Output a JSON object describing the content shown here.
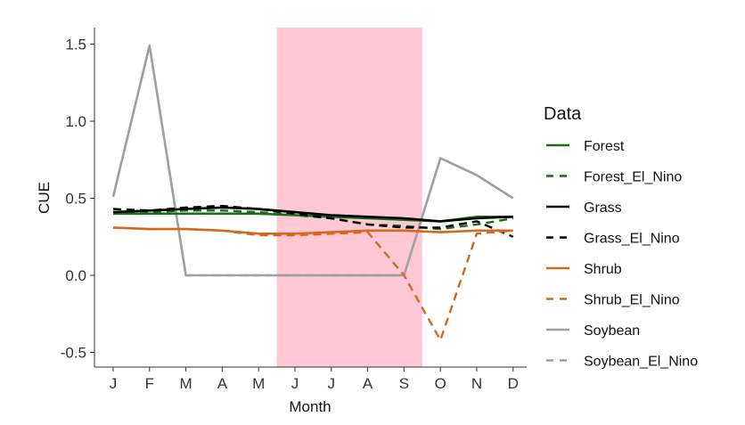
{
  "chart_data": {
    "type": "line",
    "title": "",
    "xlabel": "Month",
    "ylabel": "CUE",
    "categories": [
      "J",
      "F",
      "M",
      "A",
      "M",
      "J",
      "J",
      "A",
      "S",
      "O",
      "N",
      "D"
    ],
    "yticks": [
      "1.5",
      "1.0",
      "0.5",
      "0.0",
      "-0.5"
    ],
    "ytick_values": [
      1.5,
      1.0,
      0.5,
      0.0,
      -0.5
    ],
    "ylim": [
      -0.57,
      1.61
    ],
    "grid": false,
    "highlight": {
      "from_month_index": 4.5,
      "to_month_index": 8.5,
      "color": "#ffc8d4"
    },
    "legend": {
      "title": "Data",
      "position": "right"
    },
    "series": [
      {
        "name": "Soybean",
        "color": "#a0a0a0",
        "dash": "solid",
        "values": [
          0.51,
          1.49,
          0.0,
          0.0,
          0.0,
          0.0,
          0.0,
          0.0,
          0.0,
          0.76,
          0.65,
          0.5
        ]
      },
      {
        "name": "Soybean_El_Nino",
        "color": "#a0a0a0",
        "dash": "dashed",
        "values": [
          0.51,
          1.49,
          0.0,
          0.0,
          0.0,
          0.0,
          0.0,
          0.0,
          0.0,
          0.76,
          0.65,
          0.5
        ]
      },
      {
        "name": "Forest",
        "color": "#1a6e1a",
        "dash": "solid",
        "values": [
          0.4,
          0.4,
          0.4,
          0.4,
          0.4,
          0.39,
          0.38,
          0.37,
          0.36,
          0.35,
          0.38,
          0.38
        ]
      },
      {
        "name": "Forest_El_Nino",
        "color": "#1a6e1a",
        "dash": "dashed",
        "values": [
          0.41,
          0.41,
          0.42,
          0.42,
          0.41,
          0.39,
          0.37,
          0.33,
          0.32,
          0.3,
          0.33,
          0.37
        ]
      },
      {
        "name": "Grass",
        "color": "#000000",
        "dash": "solid",
        "values": [
          0.41,
          0.42,
          0.43,
          0.44,
          0.43,
          0.41,
          0.39,
          0.38,
          0.37,
          0.35,
          0.37,
          0.38
        ]
      },
      {
        "name": "Grass_El_Nino",
        "color": "#000000",
        "dash": "dashed",
        "values": [
          0.43,
          0.42,
          0.44,
          0.45,
          0.43,
          0.4,
          0.37,
          0.33,
          0.31,
          0.31,
          0.35,
          0.25
        ]
      },
      {
        "name": "Shrub",
        "color": "#d2691e",
        "dash": "solid",
        "values": [
          0.31,
          0.3,
          0.3,
          0.29,
          0.27,
          0.27,
          0.28,
          0.29,
          0.29,
          0.28,
          0.29,
          0.29
        ]
      },
      {
        "name": "Shrub_El_Nino",
        "color": "#d2691e",
        "dash": "dashed",
        "values": [
          0.31,
          0.3,
          0.3,
          0.29,
          0.26,
          0.26,
          0.27,
          0.28,
          0.0,
          -0.42,
          0.27,
          0.29
        ]
      }
    ]
  }
}
